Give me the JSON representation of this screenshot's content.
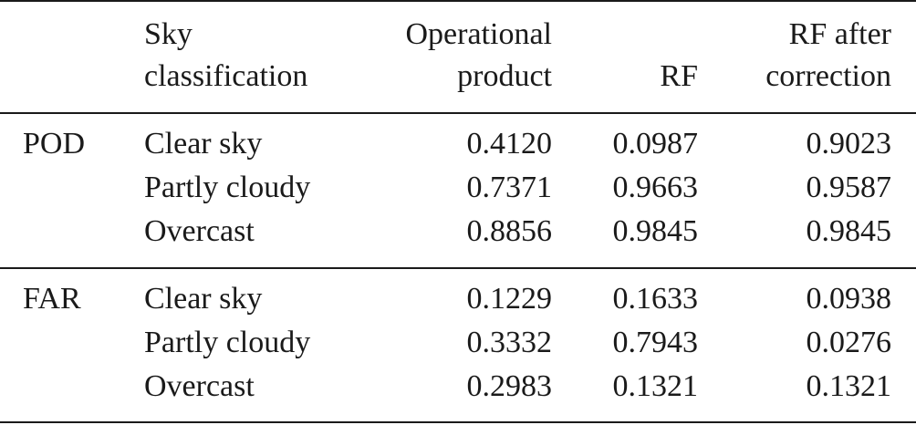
{
  "table": {
    "header": [
      [
        "Sky",
        "classification"
      ],
      [
        "Operational",
        "product"
      ],
      [
        "RF"
      ],
      [
        "RF after",
        "correction"
      ]
    ],
    "groups": [
      {
        "label": "POD",
        "rows": [
          {
            "sky": "Clear sky",
            "values": [
              "0.4120",
              "0.0987",
              "0.9023"
            ]
          },
          {
            "sky": "Partly cloudy",
            "values": [
              "0.7371",
              "0.9663",
              "0.9587"
            ]
          },
          {
            "sky": "Overcast",
            "values": [
              "0.8856",
              "0.9845",
              "0.9845"
            ]
          }
        ]
      },
      {
        "label": "FAR",
        "rows": [
          {
            "sky": "Clear sky",
            "values": [
              "0.1229",
              "0.1633",
              "0.0938"
            ]
          },
          {
            "sky": "Partly cloudy",
            "values": [
              "0.3332",
              "0.7943",
              "0.0276"
            ]
          },
          {
            "sky": "Overcast",
            "values": [
              "0.2983",
              "0.1321",
              "0.1321"
            ]
          }
        ]
      }
    ]
  }
}
